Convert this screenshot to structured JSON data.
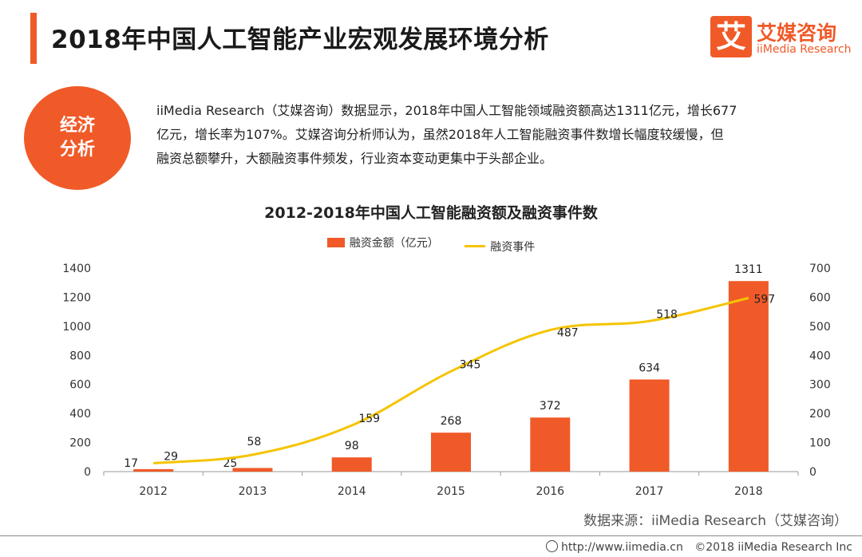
{
  "header": {
    "title": "2018年中国人工智能产业宏观发展环境分析",
    "logo_mark": "艾",
    "logo_cn": "艾媒咨询",
    "logo_en": "iiMedia Research"
  },
  "badge": {
    "line1": "经济",
    "line2": "分析"
  },
  "summary": {
    "line1": "iiMedia Research（艾媒咨询）数据显示，2018年中国人工智能领域融资额高达1311亿元，增长677",
    "line2": "亿元，增长率为107%。艾媒咨询分析师认为，虽然2018年人工智能融资事件数增长幅度较缓慢，但",
    "line3": "融资总额攀升，大额融资事件频发，行业资本变动更集中于头部企业。"
  },
  "chart_data": {
    "type": "bar",
    "title": "2012-2018年中国人工智能融资额及融资事件数",
    "categories": [
      "2012",
      "2013",
      "2014",
      "2015",
      "2016",
      "2017",
      "2018"
    ],
    "series": [
      {
        "name": "融资金额（亿元）",
        "type": "bar",
        "axis": "left",
        "values": [
          17,
          25,
          98,
          268,
          372,
          634,
          1311
        ]
      },
      {
        "name": "融资事件",
        "type": "line",
        "axis": "right",
        "values": [
          29,
          58,
          159,
          345,
          487,
          518,
          597
        ]
      }
    ],
    "ylim_left": [
      0,
      1400
    ],
    "yticks_left": [
      0,
      200,
      400,
      600,
      800,
      1000,
      1200,
      1400
    ],
    "ylim_right": [
      0,
      700
    ],
    "yticks_right": [
      0,
      100,
      200,
      300,
      400,
      500,
      600,
      700
    ],
    "legend_position": "top-center",
    "colors": {
      "bar": "#f05a28",
      "line": "#f5c400"
    }
  },
  "source": "数据来源：iiMedia Research（艾媒咨询）",
  "footer": {
    "url": "http://www.iimedia.cn",
    "copyright": "©2018  iiMedia Research  Inc"
  }
}
